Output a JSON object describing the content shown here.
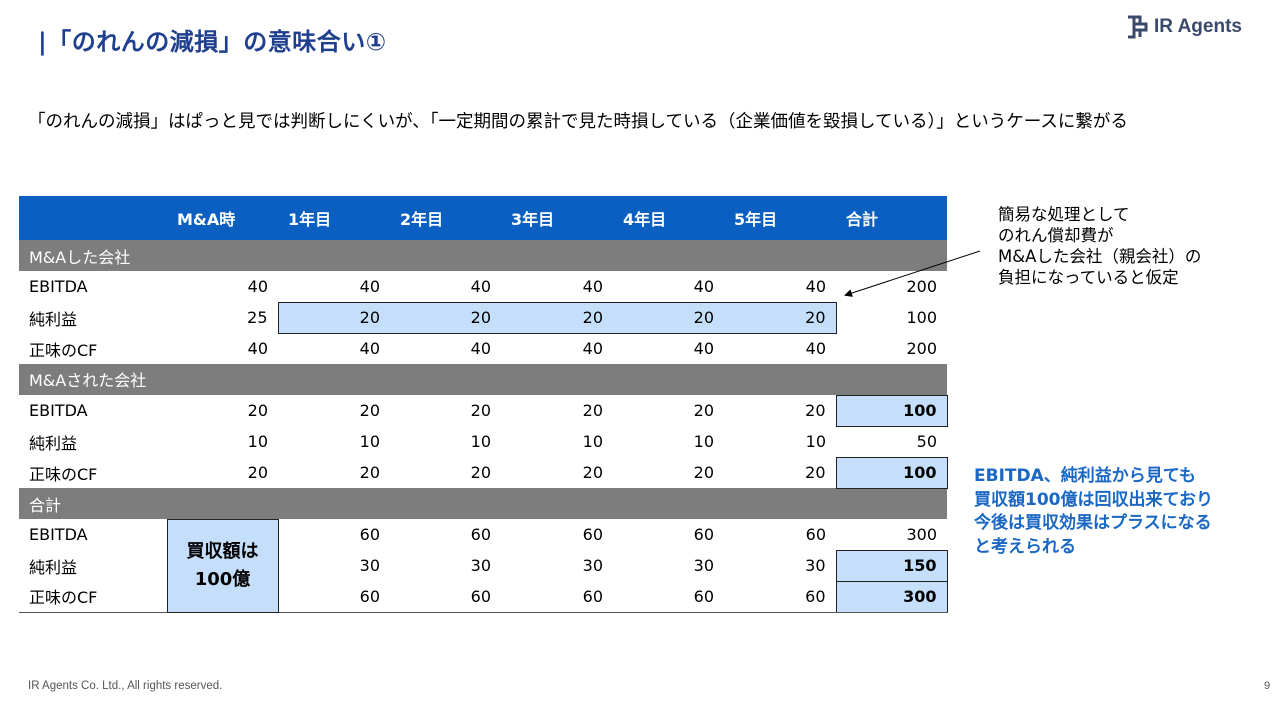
{
  "header": {
    "title": "|「のれんの減損」の意味合い①",
    "logo_text": "IR Agents",
    "logo_icon": "ir-agents-logo-icon"
  },
  "subtitle": "「のれんの減損」はぱっと見では判断しにくいが、「一定期間の累計で見た時損している（企業価値を毀損している）」というケースに繋がる",
  "table": {
    "headers": [
      "",
      "M&A時",
      "1年目",
      "2年目",
      "3年目",
      "4年目",
      "5年目",
      "合計"
    ],
    "sections": [
      {
        "title": "M&Aした会社",
        "rows": [
          {
            "label": "EBITDA",
            "values": [
              "40",
              "40",
              "40",
              "40",
              "40",
              "40",
              "200"
            ]
          },
          {
            "label": "純利益",
            "values": [
              "25",
              "20",
              "20",
              "20",
              "20",
              "20",
              "100"
            ]
          },
          {
            "label": "正味のCF",
            "values": [
              "40",
              "40",
              "40",
              "40",
              "40",
              "40",
              "200"
            ]
          }
        ]
      },
      {
        "title": "M&Aされた会社",
        "rows": [
          {
            "label": "EBITDA",
            "values": [
              "20",
              "20",
              "20",
              "20",
              "20",
              "20",
              "100"
            ]
          },
          {
            "label": "純利益",
            "values": [
              "10",
              "10",
              "10",
              "10",
              "10",
              "10",
              "50"
            ]
          },
          {
            "label": "正味のCF",
            "values": [
              "20",
              "20",
              "20",
              "20",
              "20",
              "20",
              "100"
            ]
          }
        ]
      },
      {
        "title": "合計",
        "rows": [
          {
            "label": "EBITDA",
            "values": [
              "",
              "60",
              "60",
              "60",
              "60",
              "60",
              "300"
            ]
          },
          {
            "label": "純利益",
            "values": [
              "",
              "30",
              "30",
              "30",
              "30",
              "30",
              "150"
            ]
          },
          {
            "label": "正味のCF",
            "values": [
              "",
              "60",
              "60",
              "60",
              "60",
              "60",
              "300"
            ]
          }
        ]
      }
    ],
    "purchase_note": [
      "買収額は",
      "100億"
    ]
  },
  "note": [
    "簡易な処理として",
    "のれん償却費が",
    "M&Aした会社（親会社）の",
    "負担になっていると仮定"
  ],
  "conclusion": [
    "EBITDA、純利益から見ても",
    "買収額100億は回収出来ており",
    "今後は買収効果はプラスになる",
    "と考えられる"
  ],
  "footer": {
    "copyright": "IR Agents Co. Ltd., All rights reserved.",
    "page_number": "9"
  },
  "colors": {
    "title": "#1f3f8f",
    "header_bg": "#0b5fc1",
    "section_bg": "#7d7d7d",
    "highlight": "#c5dffb",
    "conclusion": "#1a67c4"
  }
}
